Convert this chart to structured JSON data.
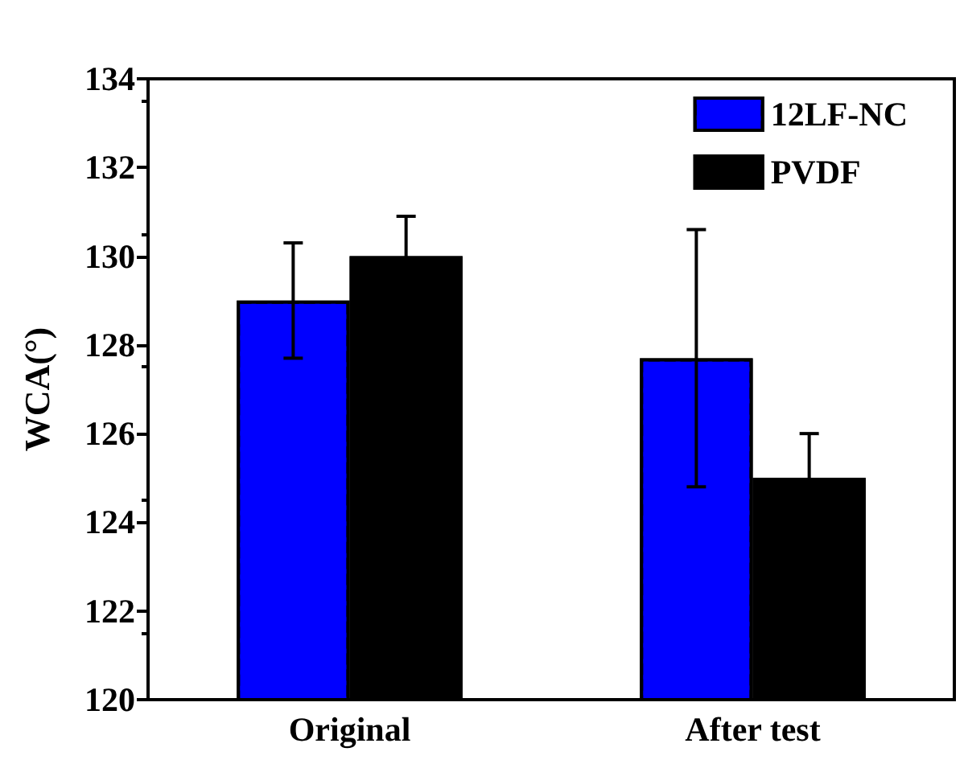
{
  "chart_data": {
    "type": "bar",
    "ylabel": "WCA(°)",
    "categories": [
      "Original",
      "After test"
    ],
    "series": [
      {
        "name": "12LF-NC",
        "color": "#0000ff",
        "values": [
          129,
          127.7
        ],
        "errors": [
          1.3,
          2.9
        ]
      },
      {
        "name": "PVDF",
        "color": "#000000",
        "values": [
          130,
          125
        ],
        "errors": [
          0.9,
          1
        ]
      }
    ],
    "ylim": [
      120,
      134
    ],
    "yticks": [
      120,
      122,
      124,
      126,
      128,
      130,
      132,
      134
    ],
    "grid": false,
    "legend": "top right"
  }
}
